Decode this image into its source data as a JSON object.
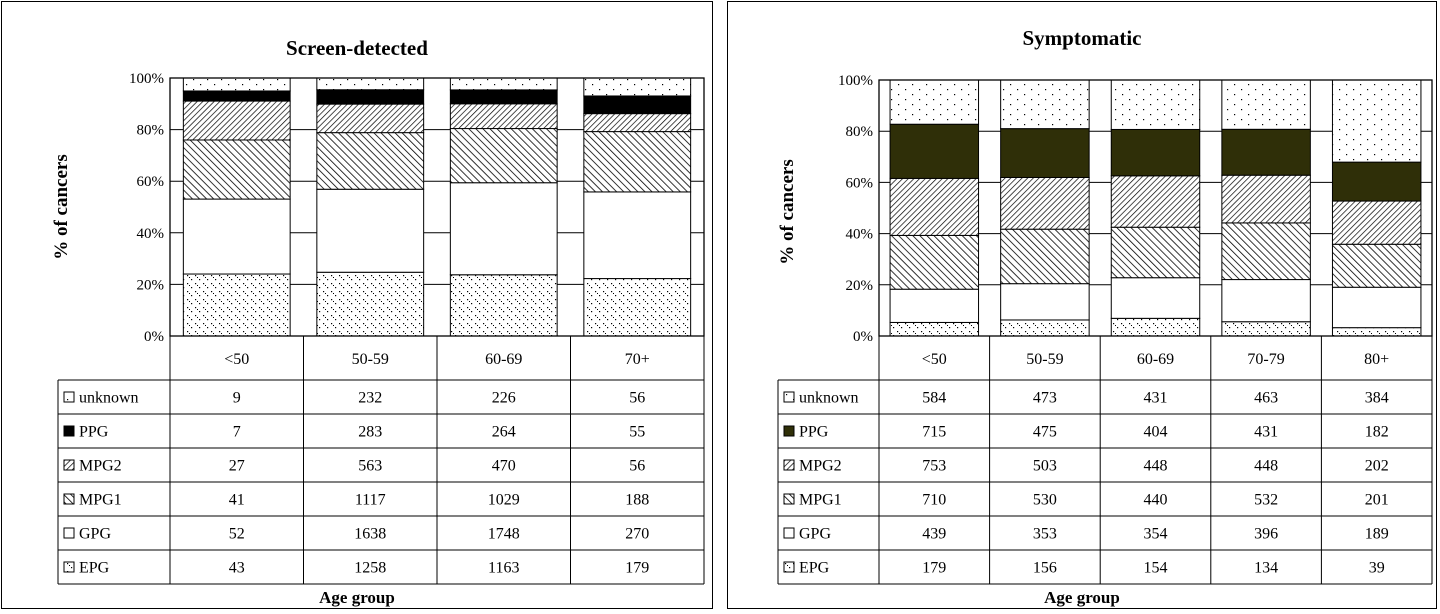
{
  "x_axis_label": "Age group",
  "y_axis_label": "% of cancers",
  "colors": {
    "PPG_left": "#000000",
    "PPG_right": "#2f2f08",
    "GPG": "#ffffff",
    "border": "#000000"
  },
  "chart_data": [
    {
      "type": "bar",
      "stacked": "percent",
      "title": "Screen-detected",
      "xlabel": "Age group",
      "ylabel": "% of cancers",
      "ylim": [
        0,
        100
      ],
      "y_ticks": [
        "0%",
        "20%",
        "40%",
        "60%",
        "80%",
        "100%"
      ],
      "gridlines": true,
      "legend_placement": "data-table-left",
      "categories": [
        "<50",
        "50-59",
        "60-69",
        "70+"
      ],
      "series": [
        {
          "name": "unknown",
          "pattern": "dots-sparse",
          "values": [
            9,
            232,
            226,
            56
          ]
        },
        {
          "name": "PPG",
          "pattern": "solid-black",
          "values": [
            7,
            283,
            264,
            55
          ]
        },
        {
          "name": "MPG2",
          "pattern": "diag-back",
          "values": [
            27,
            563,
            470,
            56
          ]
        },
        {
          "name": "MPG1",
          "pattern": "diag-fwd",
          "values": [
            41,
            1117,
            1029,
            188
          ]
        },
        {
          "name": "GPG",
          "pattern": "white",
          "values": [
            52,
            1638,
            1748,
            270
          ]
        },
        {
          "name": "EPG",
          "pattern": "dots-dense",
          "values": [
            43,
            1258,
            1163,
            179
          ]
        }
      ]
    },
    {
      "type": "bar",
      "stacked": "percent",
      "title": "Symptomatic",
      "xlabel": "Age group",
      "ylabel": "% of cancers",
      "ylim": [
        0,
        100
      ],
      "y_ticks": [
        "0%",
        "20%",
        "40%",
        "60%",
        "80%",
        "100%"
      ],
      "gridlines": true,
      "legend_placement": "data-table-left",
      "categories": [
        "<50",
        "50-59",
        "60-69",
        "70-79",
        "80+"
      ],
      "series": [
        {
          "name": "unknown",
          "pattern": "dots-sparse",
          "values": [
            584,
            473,
            431,
            463,
            384
          ]
        },
        {
          "name": "PPG",
          "pattern": "solid-dark",
          "values": [
            715,
            475,
            404,
            431,
            182
          ]
        },
        {
          "name": "MPG2",
          "pattern": "diag-back",
          "values": [
            753,
            503,
            448,
            448,
            202
          ]
        },
        {
          "name": "MPG1",
          "pattern": "diag-fwd",
          "values": [
            710,
            530,
            440,
            532,
            201
          ]
        },
        {
          "name": "GPG",
          "pattern": "white",
          "values": [
            439,
            353,
            354,
            396,
            189
          ]
        },
        {
          "name": "EPG",
          "pattern": "dots-dense",
          "values": [
            179,
            156,
            154,
            134,
            39
          ]
        }
      ]
    }
  ]
}
